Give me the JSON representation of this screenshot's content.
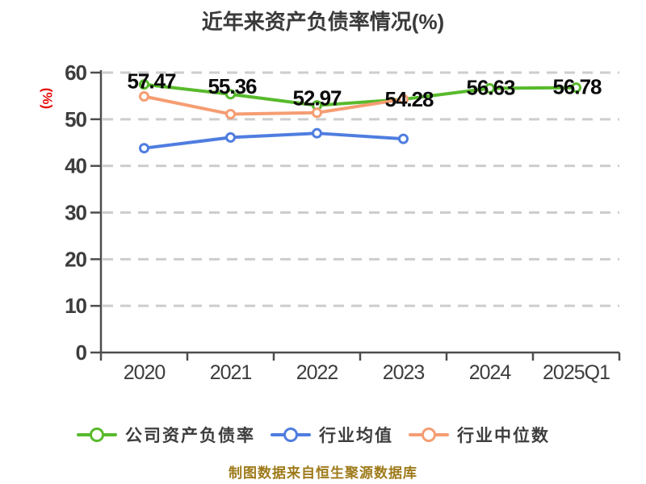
{
  "title": "近年来资产负债率情况(%)",
  "footer": "制图数据来自恒生聚源数据库",
  "colors": {
    "title": "#3a3a3a",
    "axis": "#4d4d4d",
    "tick_label": "#3d3d3d",
    "grid": "#cdcdcd",
    "data_label": "#0a0a0a",
    "ylabel_red": "#e8100c",
    "footer": "#9e7a1a",
    "legend_text": "#3e3e3e",
    "series_green": "#58ba2c",
    "series_blue": "#4f7de0",
    "series_orange": "#f59d72"
  },
  "chart_data": {
    "type": "line",
    "title": "近年来资产负债率情况(%)",
    "ylabel": "(%)",
    "xlabel": "",
    "categories": [
      "2020",
      "2021",
      "2022",
      "2023",
      "2024",
      "2025Q1"
    ],
    "yticks": [
      0,
      10,
      20,
      30,
      40,
      50,
      60
    ],
    "ylim": [
      0,
      60
    ],
    "grid": "horizontal-dashed",
    "legend_position": "bottom",
    "series": [
      {
        "name": "公司资产负债率",
        "color": "#58ba2c",
        "values": [
          57.47,
          55.36,
          52.97,
          54.28,
          56.63,
          56.78
        ],
        "point_labels": [
          "57.47",
          "55.36",
          "52.97",
          "54.28",
          "56.63",
          "56.78"
        ],
        "labels_shown": true
      },
      {
        "name": "行业均值",
        "color": "#4f7de0",
        "values": [
          43.8,
          46.1,
          47.0,
          45.8,
          null,
          null
        ],
        "labels_shown": false
      },
      {
        "name": "行业中位数",
        "color": "#f59d72",
        "values": [
          54.9,
          51.1,
          51.4,
          54.3,
          null,
          null
        ],
        "labels_shown": false
      }
    ],
    "footnote": "制图数据来自恒生聚源数据库"
  }
}
